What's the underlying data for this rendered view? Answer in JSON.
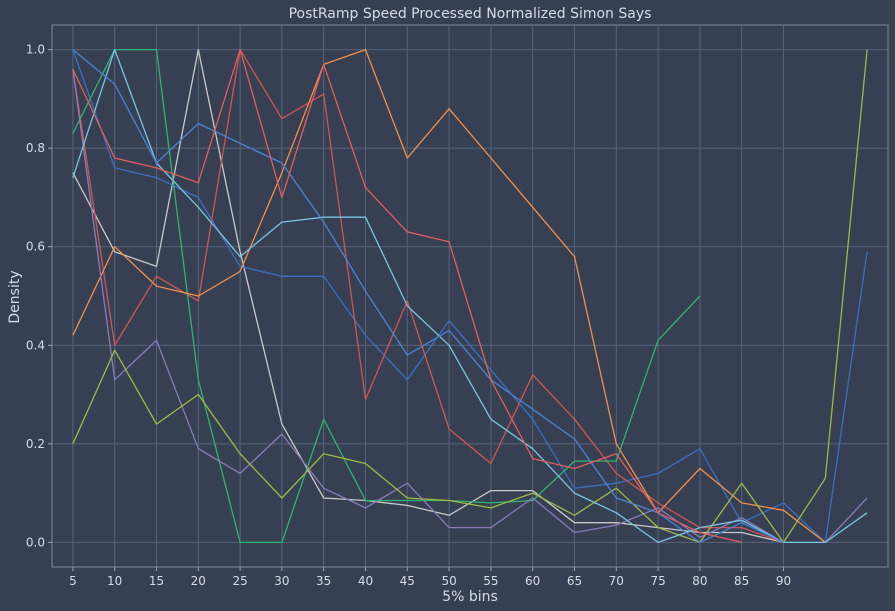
{
  "chart_data": {
    "type": "line",
    "title": "PostRamp Speed Processed Normalized Simon Says",
    "xlabel": "5% bins",
    "ylabel": "Density",
    "xlim": [
      -0.5,
      19.5
    ],
    "ylim": [
      -0.05,
      1.05
    ],
    "x_ticks": [
      {
        "x": 0,
        "label": "5"
      },
      {
        "x": 1,
        "label": "10"
      },
      {
        "x": 2,
        "label": "15"
      },
      {
        "x": 3,
        "label": "20"
      },
      {
        "x": 4,
        "label": "25"
      },
      {
        "x": 5,
        "label": "30"
      },
      {
        "x": 6,
        "label": "35"
      },
      {
        "x": 7,
        "label": "40"
      },
      {
        "x": 8,
        "label": "45"
      },
      {
        "x": 9,
        "label": "50"
      },
      {
        "x": 10,
        "label": "55"
      },
      {
        "x": 11,
        "label": "60"
      },
      {
        "x": 12,
        "label": "65"
      },
      {
        "x": 13,
        "label": "70"
      },
      {
        "x": 14,
        "label": "75"
      },
      {
        "x": 15,
        "label": "80"
      },
      {
        "x": 16,
        "label": "85"
      },
      {
        "x": 17,
        "label": "90"
      }
    ],
    "y_ticks": [
      {
        "y": 0.0,
        "label": "0.0"
      },
      {
        "y": 0.2,
        "label": "0.2"
      },
      {
        "y": 0.4,
        "label": "0.4"
      },
      {
        "y": 0.6,
        "label": "0.6"
      },
      {
        "y": 0.8,
        "label": "0.8"
      },
      {
        "y": 1.0,
        "label": "1.0"
      }
    ],
    "grid": true,
    "series": [
      {
        "color": "#c9c9c9",
        "values": [
          0.75,
          0.59,
          0.56,
          1.0,
          0.59,
          0.24,
          0.09,
          0.085,
          0.075,
          0.055,
          0.105,
          0.105,
          0.04,
          0.04,
          0.03,
          0.02,
          0.02,
          0.0
        ]
      },
      {
        "color": "#3a6fc4",
        "values": [
          1.0,
          0.76,
          0.74,
          0.7,
          0.56,
          0.54,
          0.54,
          0.42,
          0.33,
          0.45,
          0.35,
          0.25,
          0.11,
          0.12,
          0.14,
          0.19,
          0.04,
          0.08,
          0.0,
          0.59
        ]
      },
      {
        "color": "#d05454",
        "values": [
          0.96,
          0.4,
          0.54,
          0.49,
          1.0,
          0.86,
          0.91,
          0.29,
          0.49,
          0.23,
          0.16,
          0.34,
          0.25,
          0.14,
          0.08,
          0.03,
          0.03,
          0.0
        ]
      },
      {
        "color": "#2fb36f",
        "values": [
          0.83,
          1.0,
          1.0,
          0.33,
          0.0,
          0.0,
          0.25,
          0.085,
          0.085,
          0.085,
          0.08,
          0.085,
          0.165,
          0.165,
          0.41,
          0.5
        ]
      },
      {
        "color": "#f28e4b",
        "values": [
          0.42,
          0.6,
          0.52,
          0.5,
          0.55,
          0.75,
          0.97,
          1.0,
          0.78,
          0.88,
          0.78,
          0.68,
          0.58,
          0.2,
          0.06,
          0.15,
          0.08,
          0.065,
          0.0
        ]
      },
      {
        "color": "#8a7ab8",
        "values": [
          0.96,
          0.33,
          0.41,
          0.19,
          0.14,
          0.22,
          0.11,
          0.07,
          0.12,
          0.03,
          0.03,
          0.09,
          0.02,
          0.035,
          0.07,
          0.01,
          0.05,
          0.0,
          0.0,
          0.09
        ]
      },
      {
        "color": "#9fb845",
        "values": [
          0.2,
          0.39,
          0.24,
          0.3,
          0.18,
          0.09,
          0.18,
          0.16,
          0.09,
          0.085,
          0.07,
          0.1,
          0.055,
          0.11,
          0.03,
          0.0,
          0.12,
          0.0,
          0.13,
          1.0
        ]
      },
      {
        "color": "#76c4e0",
        "values": [
          0.74,
          1.0,
          0.77,
          0.68,
          0.58,
          0.65,
          0.66,
          0.66,
          0.48,
          0.4,
          0.25,
          0.19,
          0.1,
          0.06,
          0.0,
          0.03,
          0.045,
          0.0,
          0.0,
          0.06
        ]
      },
      {
        "color": "#4a82d4",
        "values": [
          1.0,
          0.93,
          0.77,
          0.85,
          0.81,
          0.77,
          0.65,
          0.51,
          0.38,
          0.43,
          0.33,
          0.27,
          0.21,
          0.09,
          0.06,
          0.0,
          0.04,
          0.0
        ]
      },
      {
        "color": "#e05d5d",
        "values": [
          0.96,
          0.78,
          0.76,
          0.73,
          1.0,
          0.7,
          0.97,
          0.72,
          0.63,
          0.61,
          0.33,
          0.17,
          0.15,
          0.18,
          0.06,
          0.02,
          0.0
        ]
      }
    ]
  }
}
